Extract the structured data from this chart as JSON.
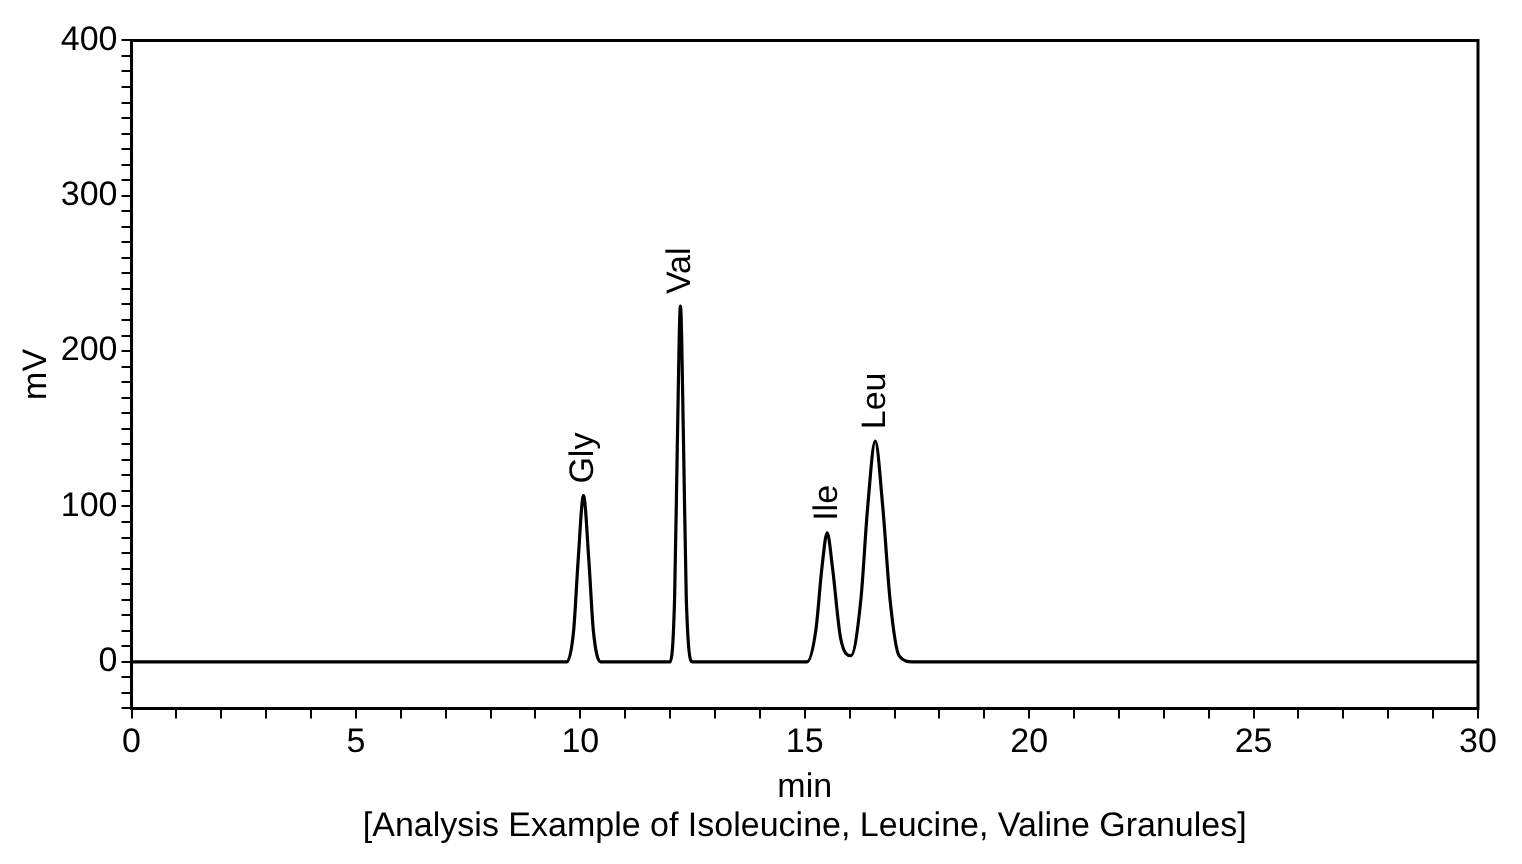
{
  "chart_data": {
    "type": "line",
    "xlabel": "min",
    "ylabel": "mV",
    "series": [
      {
        "color": "#000000",
        "x": [
          0,
          9.7,
          9.85,
          9.95,
          10.07,
          10.19,
          10.29,
          10.45,
          12.0,
          12.1,
          12.16,
          12.23,
          12.3,
          12.36,
          12.5,
          15.05,
          15.25,
          15.38,
          15.5,
          15.62,
          15.8,
          16.03,
          16.25,
          16.4,
          16.57,
          16.74,
          16.9,
          17.1,
          17.4,
          30
        ],
        "values": [
          0,
          0,
          20,
          65,
          107,
          65,
          20,
          0,
          0,
          41,
          139,
          229,
          139,
          41,
          0,
          0,
          21,
          60,
          83,
          60,
          15,
          4,
          40,
          99,
          142,
          99,
          40,
          4,
          0,
          0
        ]
      }
    ],
    "xlim": [
      0,
      30
    ],
    "xticks": [
      0,
      {
        "value": 1,
        "label": null
      },
      {
        "value": 2,
        "label": null
      },
      {
        "value": 3,
        "label": null
      },
      {
        "value": 4,
        "label": null
      },
      5,
      {
        "value": 6,
        "label": null
      },
      {
        "value": 7,
        "label": null
      },
      {
        "value": 8,
        "label": null
      },
      {
        "value": 9,
        "label": null
      },
      10,
      {
        "value": 11,
        "label": null
      },
      {
        "value": 12,
        "label": null
      },
      {
        "value": 13,
        "label": null
      },
      {
        "value": 14,
        "label": null
      },
      15,
      {
        "value": 16,
        "label": null
      },
      {
        "value": 17,
        "label": null
      },
      {
        "value": 18,
        "label": null
      },
      {
        "value": 19,
        "label": null
      },
      20,
      {
        "value": 21,
        "label": null
      },
      {
        "value": 22,
        "label": null
      },
      {
        "value": 23,
        "label": null
      },
      {
        "value": 24,
        "label": null
      },
      25,
      {
        "value": 26,
        "label": null
      },
      {
        "value": 27,
        "label": null
      },
      {
        "value": 28,
        "label": null
      },
      {
        "value": 29,
        "label": null
      },
      30
    ],
    "ylim": [
      -30,
      400
    ],
    "yticks": [
      {
        "value": -30,
        "label": null
      },
      {
        "value": -20,
        "label": null
      },
      {
        "value": -10,
        "label": null
      },
      0,
      {
        "value": 10,
        "label": null
      },
      {
        "value": 20,
        "label": null
      },
      {
        "value": 30,
        "label": null
      },
      {
        "value": 40,
        "label": null
      },
      {
        "value": 50,
        "label": null
      },
      {
        "value": 60,
        "label": null
      },
      {
        "value": 70,
        "label": null
      },
      {
        "value": 80,
        "label": null
      },
      {
        "value": 90,
        "label": null
      },
      100,
      {
        "value": 110,
        "label": null
      },
      {
        "value": 120,
        "label": null
      },
      {
        "value": 130,
        "label": null
      },
      {
        "value": 140,
        "label": null
      },
      {
        "value": 150,
        "label": null
      },
      {
        "value": 160,
        "label": null
      },
      {
        "value": 170,
        "label": null
      },
      {
        "value": 180,
        "label": null
      },
      {
        "value": 190,
        "label": null
      },
      200,
      {
        "value": 210,
        "label": null
      },
      {
        "value": 220,
        "label": null
      },
      {
        "value": 230,
        "label": null
      },
      {
        "value": 240,
        "label": null
      },
      {
        "value": 250,
        "label": null
      },
      {
        "value": 260,
        "label": null
      },
      {
        "value": 270,
        "label": null
      },
      {
        "value": 280,
        "label": null
      },
      {
        "value": 290,
        "label": null
      },
      300,
      {
        "value": 310,
        "label": null
      },
      {
        "value": 320,
        "label": null
      },
      {
        "value": 330,
        "label": null
      },
      {
        "value": 340,
        "label": null
      },
      {
        "value": 350,
        "label": null
      },
      {
        "value": 360,
        "label": null
      },
      {
        "value": 370,
        "label": null
      },
      {
        "value": 380,
        "label": null
      },
      {
        "value": 390,
        "label": null
      },
      400
    ],
    "grid": false,
    "legend": false,
    "marker": "none",
    "line_style": "solid",
    "annotations": [
      {
        "text": "Gly",
        "x": 10.07,
        "y": 107
      },
      {
        "text": "Val",
        "x": 12.23,
        "y": 229
      },
      {
        "text": "Ile",
        "x": 15.5,
        "y": 83
      },
      {
        "text": "Leu",
        "x": 16.57,
        "y": 142
      },
      "[Analysis Example of Isoleucine, Leucine, Valine Granules]"
    ]
  }
}
